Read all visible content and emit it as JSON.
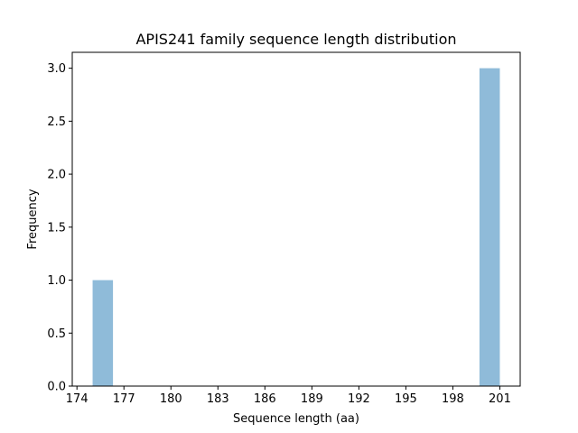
{
  "chart_data": {
    "type": "bar",
    "title": "APIS241 family sequence length distribution",
    "xlabel": "Sequence length (aa)",
    "ylabel": "Frequency",
    "bin_edges": [
      175.0,
      176.3,
      177.6,
      178.9,
      180.2,
      181.5,
      182.8,
      184.1,
      185.4,
      186.7,
      188.0,
      189.3,
      190.6,
      191.9,
      193.2,
      194.5,
      195.8,
      197.1,
      198.4,
      199.7,
      201.0
    ],
    "values": [
      1,
      0,
      0,
      0,
      0,
      0,
      0,
      0,
      0,
      0,
      0,
      0,
      0,
      0,
      0,
      0,
      0,
      0,
      0,
      3
    ],
    "xlim": [
      173.7,
      202.3
    ],
    "ylim": [
      0,
      3.15
    ],
    "xticks": [
      174,
      177,
      180,
      183,
      186,
      189,
      192,
      195,
      198,
      201
    ],
    "yticks": [
      0.0,
      0.5,
      1.0,
      1.5,
      2.0,
      2.5,
      3.0
    ],
    "ytick_labels": [
      "0.0",
      "0.5",
      "1.0",
      "1.5",
      "2.0",
      "2.5",
      "3.0"
    ],
    "bar_color": "#1f77b4",
    "bar_alpha": 0.5,
    "grid": false,
    "legend": false
  }
}
